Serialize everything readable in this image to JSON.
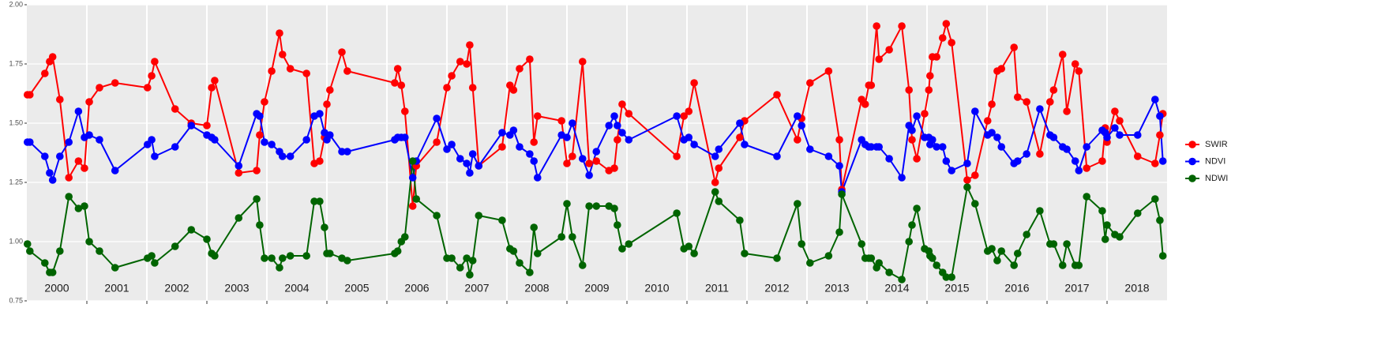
{
  "chart_data": {
    "type": "line",
    "x": [
      2000.01,
      2000.05,
      2000.3,
      2000.38,
      2000.43,
      2000.55,
      2000.7,
      2000.86,
      2000.96,
      2001.04,
      2001.21,
      2001.47,
      2002.01,
      2002.08,
      2002.13,
      2002.47,
      2002.74,
      2003.0,
      2003.08,
      2003.13,
      2003.53,
      2003.83,
      2003.88,
      2003.96,
      2004.08,
      2004.21,
      2004.26,
      2004.39,
      2004.66,
      2004.79,
      2004.88,
      2004.96,
      2005.0,
      2005.05,
      2005.25,
      2005.34,
      2006.13,
      2006.18,
      2006.24,
      2006.3,
      2006.43,
      2006.49,
      2006.83,
      2007.0,
      2007.08,
      2007.22,
      2007.33,
      2007.38,
      2007.43,
      2007.53,
      2007.92,
      2008.05,
      2008.11,
      2008.21,
      2008.38,
      2008.45,
      2008.51,
      2008.91,
      2009.0,
      2009.09,
      2009.26,
      2009.37,
      2009.49,
      2009.7,
      2009.79,
      2009.84,
      2009.92,
      2010.03,
      2010.83,
      2010.95,
      2011.03,
      2011.12,
      2011.47,
      2011.53,
      2011.88,
      2011.96,
      2012.5,
      2012.84,
      2012.91,
      2013.05,
      2013.36,
      2013.54,
      2013.58,
      2013.91,
      2013.97,
      2014.03,
      2014.07,
      2014.16,
      2014.2,
      2014.37,
      2014.58,
      2014.7,
      2014.75,
      2014.83,
      2014.96,
      2015.03,
      2015.05,
      2015.09,
      2015.16,
      2015.26,
      2015.32,
      2015.41,
      2015.67,
      2015.8,
      2016.01,
      2016.08,
      2016.17,
      2016.24,
      2016.45,
      2016.51,
      2016.66,
      2016.88,
      2017.05,
      2017.11,
      2017.26,
      2017.33,
      2017.47,
      2017.53,
      2017.66,
      2017.92,
      2017.97,
      2018.0,
      2018.13,
      2018.21,
      2018.51,
      2018.8,
      2018.88,
      2018.93
    ],
    "series": [
      {
        "name": "SWIR",
        "color": "#ff0000",
        "values": [
          1.62,
          1.62,
          1.71,
          1.76,
          1.78,
          1.6,
          1.27,
          1.34,
          1.31,
          1.59,
          1.65,
          1.67,
          1.65,
          1.7,
          1.76,
          1.56,
          1.5,
          1.49,
          1.65,
          1.68,
          1.29,
          1.3,
          1.45,
          1.59,
          1.72,
          1.88,
          1.79,
          1.73,
          1.71,
          1.33,
          1.34,
          1.44,
          1.58,
          1.64,
          1.8,
          1.72,
          1.67,
          1.73,
          1.66,
          1.55,
          1.15,
          1.32,
          1.42,
          1.65,
          1.7,
          1.76,
          1.75,
          1.83,
          1.65,
          1.32,
          1.4,
          1.66,
          1.64,
          1.73,
          1.77,
          1.42,
          1.53,
          1.51,
          1.33,
          1.36,
          1.76,
          1.33,
          1.34,
          1.3,
          1.31,
          1.43,
          1.58,
          1.54,
          1.36,
          1.53,
          1.55,
          1.67,
          1.25,
          1.31,
          1.44,
          1.51,
          1.62,
          1.43,
          1.52,
          1.67,
          1.72,
          1.43,
          1.22,
          1.6,
          1.58,
          1.66,
          1.66,
          1.91,
          1.77,
          1.81,
          1.91,
          1.64,
          1.43,
          1.35,
          1.54,
          1.64,
          1.7,
          1.78,
          1.78,
          1.86,
          1.92,
          1.84,
          1.26,
          1.28,
          1.51,
          1.58,
          1.72,
          1.73,
          1.82,
          1.61,
          1.59,
          1.37,
          1.59,
          1.64,
          1.79,
          1.55,
          1.75,
          1.72,
          1.31,
          1.34,
          1.48,
          1.42,
          1.55,
          1.51,
          1.36,
          1.33,
          1.45,
          1.54
        ]
      },
      {
        "name": "NDVI",
        "color": "#0000ff",
        "values": [
          1.42,
          1.42,
          1.36,
          1.29,
          1.26,
          1.36,
          1.42,
          1.55,
          1.44,
          1.45,
          1.43,
          1.3,
          1.41,
          1.43,
          1.36,
          1.4,
          1.49,
          1.45,
          1.44,
          1.43,
          1.32,
          1.54,
          1.53,
          1.42,
          1.41,
          1.38,
          1.36,
          1.36,
          1.43,
          1.53,
          1.54,
          1.46,
          1.43,
          1.45,
          1.38,
          1.38,
          1.43,
          1.44,
          1.44,
          1.44,
          1.27,
          1.34,
          1.52,
          1.39,
          1.41,
          1.35,
          1.33,
          1.29,
          1.37,
          1.32,
          1.46,
          1.45,
          1.47,
          1.4,
          1.37,
          1.34,
          1.27,
          1.45,
          1.44,
          1.5,
          1.35,
          1.28,
          1.38,
          1.49,
          1.53,
          1.49,
          1.46,
          1.43,
          1.53,
          1.43,
          1.44,
          1.41,
          1.36,
          1.39,
          1.5,
          1.41,
          1.36,
          1.53,
          1.49,
          1.39,
          1.36,
          1.32,
          1.21,
          1.43,
          1.41,
          1.4,
          1.4,
          1.4,
          1.4,
          1.35,
          1.27,
          1.49,
          1.47,
          1.53,
          1.44,
          1.44,
          1.41,
          1.43,
          1.4,
          1.4,
          1.34,
          1.3,
          1.33,
          1.55,
          1.45,
          1.46,
          1.44,
          1.4,
          1.33,
          1.34,
          1.37,
          1.56,
          1.45,
          1.44,
          1.4,
          1.39,
          1.34,
          1.3,
          1.4,
          1.47,
          1.46,
          1.44,
          1.48,
          1.45,
          1.45,
          1.6,
          1.53,
          1.34
        ]
      },
      {
        "name": "NDWI",
        "color": "#006400",
        "values": [
          0.99,
          0.96,
          0.91,
          0.87,
          0.87,
          0.96,
          1.19,
          1.14,
          1.15,
          1.0,
          0.96,
          0.89,
          0.93,
          0.94,
          0.91,
          0.98,
          1.05,
          1.01,
          0.95,
          0.94,
          1.1,
          1.18,
          1.07,
          0.93,
          0.93,
          0.89,
          0.93,
          0.94,
          0.94,
          1.17,
          1.17,
          1.06,
          0.95,
          0.95,
          0.93,
          0.92,
          0.95,
          0.96,
          1.0,
          1.02,
          1.34,
          1.18,
          1.11,
          0.93,
          0.93,
          0.89,
          0.93,
          0.86,
          0.92,
          1.11,
          1.09,
          0.97,
          0.96,
          0.91,
          0.87,
          1.06,
          0.95,
          1.02,
          1.16,
          1.02,
          0.9,
          1.15,
          1.15,
          1.15,
          1.14,
          1.07,
          0.97,
          0.99,
          1.12,
          0.97,
          0.98,
          0.95,
          1.21,
          1.17,
          1.09,
          0.95,
          0.93,
          1.16,
          0.99,
          0.91,
          0.94,
          1.04,
          1.2,
          0.99,
          0.93,
          0.93,
          0.93,
          0.89,
          0.91,
          0.87,
          0.84,
          1.0,
          1.07,
          1.14,
          0.97,
          0.96,
          0.94,
          0.93,
          0.9,
          0.87,
          0.85,
          0.85,
          1.23,
          1.16,
          0.96,
          0.97,
          0.92,
          0.96,
          0.9,
          0.95,
          1.03,
          1.13,
          0.99,
          0.99,
          0.9,
          0.99,
          0.9,
          0.9,
          1.19,
          1.13,
          1.01,
          1.07,
          1.03,
          1.02,
          1.12,
          1.18,
          1.09,
          0.94
        ]
      }
    ],
    "xlim": [
      2000,
      2019
    ],
    "xticks": [
      {
        "value": 2000.5,
        "label": "2000"
      },
      {
        "value": 2001.5,
        "label": "2001"
      },
      {
        "value": 2002.5,
        "label": "2002"
      },
      {
        "value": 2003.5,
        "label": "2003"
      },
      {
        "value": 2004.5,
        "label": "2004"
      },
      {
        "value": 2005.5,
        "label": "2005"
      },
      {
        "value": 2006.5,
        "label": "2006"
      },
      {
        "value": 2007.5,
        "label": "2007"
      },
      {
        "value": 2008.5,
        "label": "2008"
      },
      {
        "value": 2009.5,
        "label": "2009"
      },
      {
        "value": 2010.5,
        "label": "2010"
      },
      {
        "value": 2011.5,
        "label": "2011"
      },
      {
        "value": 2012.5,
        "label": "2012"
      },
      {
        "value": 2013.5,
        "label": "2013"
      },
      {
        "value": 2014.5,
        "label": "2014"
      },
      {
        "value": 2015.5,
        "label": "2015"
      },
      {
        "value": 2016.5,
        "label": "2016"
      },
      {
        "value": 2017.5,
        "label": "2017"
      },
      {
        "value": 2018.5,
        "label": "2018"
      }
    ],
    "xgrid": [
      2001,
      2002,
      2003,
      2004,
      2005,
      2006,
      2007,
      2008,
      2009,
      2010,
      2011,
      2012,
      2013,
      2014,
      2015,
      2016,
      2017,
      2018
    ],
    "ylim": [
      0.75,
      2.0
    ],
    "yticks": [
      0.75,
      {
        "value": 1,
        "label": "1.00"
      },
      1.25,
      {
        "value": 1.5,
        "label": "1.50"
      },
      1.75,
      {
        "value": 2,
        "label": "2.00"
      }
    ],
    "grid": true,
    "legend": "right"
  }
}
